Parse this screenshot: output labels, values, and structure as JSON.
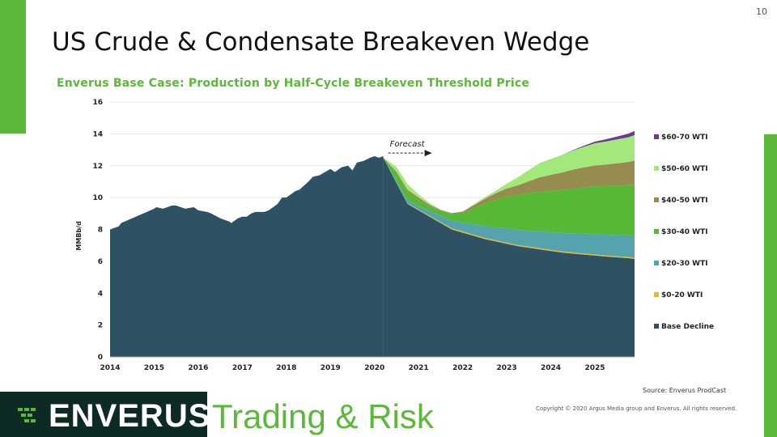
{
  "page": {
    "number": "10",
    "title": "US Crude & Condensate Breakeven Wedge",
    "source": "Source:  Enverus ProdCast",
    "copyright": "Copyright  © 2020 Argus Media group and Enverus.  All rights reserved.",
    "brand": "ENVERUS",
    "tagline": "Trading & Risk"
  },
  "colors": {
    "brand_green": "#5cb83a",
    "logo_bg": "#0e2a25",
    "base_decline": "#2e5263",
    "tier_0_20": "#e8b830",
    "tier_20_30": "#55a3ac",
    "tier_30_40": "#55b935",
    "tier_40_50": "#978c4f",
    "tier_50_60": "#a3e87a",
    "tier_60_70": "#6d3a93"
  },
  "chart_data": {
    "type": "area",
    "title": "Enverus Base Case: Production  by Half-Cycle Breakeven Threshold Price",
    "ylabel": "MMBb/d",
    "xlabel": "",
    "ylim": [
      0,
      16
    ],
    "yticks": [
      0,
      2,
      4,
      6,
      8,
      10,
      12,
      14,
      16
    ],
    "xlim": [
      2014,
      2025.9
    ],
    "xticks": [
      2014,
      2015,
      2016,
      2017,
      2018,
      2019,
      2020,
      2021,
      2022,
      2023,
      2024,
      2025
    ],
    "grid": "horizontal",
    "legend_position": "right",
    "annotation": {
      "text": "Forecast",
      "x": 2020.2,
      "y": 13.2
    },
    "historical": {
      "name": "Base Decline",
      "x": [
        2014.0,
        2014.2,
        2014.25,
        2014.5,
        2014.75,
        2015.0,
        2015.05,
        2015.2,
        2015.3,
        2015.4,
        2015.5,
        2015.7,
        2015.9,
        2016.0,
        2016.2,
        2016.3,
        2016.5,
        2016.6,
        2016.7,
        2016.75,
        2016.9,
        2017.0,
        2017.1,
        2017.2,
        2017.3,
        2017.5,
        2017.6,
        2017.7,
        2017.8,
        2017.9,
        2018.0,
        2018.2,
        2018.3,
        2018.5,
        2018.6,
        2018.75,
        2019.0,
        2019.1,
        2019.2,
        2019.25,
        2019.4,
        2019.5,
        2019.6,
        2019.75,
        2019.9,
        2020.0,
        2020.1,
        2020.2
      ],
      "y": [
        8.0,
        8.2,
        8.4,
        8.7,
        9.0,
        9.3,
        9.4,
        9.3,
        9.4,
        9.5,
        9.5,
        9.3,
        9.4,
        9.2,
        9.1,
        9.0,
        8.7,
        8.6,
        8.5,
        8.4,
        8.7,
        8.8,
        8.8,
        9.0,
        9.1,
        9.1,
        9.2,
        9.4,
        9.6,
        10.0,
        10.0,
        10.4,
        10.5,
        11.0,
        11.3,
        11.4,
        11.8,
        11.6,
        11.8,
        11.9,
        12.0,
        11.7,
        12.2,
        12.3,
        12.5,
        12.6,
        12.5,
        12.6
      ]
    },
    "forecast": {
      "x": [
        2020.2,
        2020.5,
        2020.75,
        2021.0,
        2021.25,
        2021.5,
        2021.75,
        2022.0,
        2022.25,
        2022.5,
        2022.75,
        2023.0,
        2023.25,
        2023.5,
        2023.75,
        2024.0,
        2024.25,
        2024.5,
        2024.75,
        2025.0,
        2025.25,
        2025.5,
        2025.75,
        2025.9
      ],
      "series": [
        {
          "name": "Base Decline",
          "values": [
            12.5,
            10.9,
            9.6,
            9.2,
            8.8,
            8.4,
            8.0,
            7.8,
            7.6,
            7.4,
            7.25,
            7.1,
            6.95,
            6.85,
            6.75,
            6.65,
            6.55,
            6.48,
            6.42,
            6.36,
            6.3,
            6.25,
            6.2,
            6.15
          ]
        },
        {
          "name": "$0-20 WTI",
          "values": [
            0.0,
            0.02,
            0.04,
            0.05,
            0.05,
            0.06,
            0.07,
            0.07,
            0.07,
            0.07,
            0.07,
            0.07,
            0.07,
            0.07,
            0.07,
            0.07,
            0.07,
            0.07,
            0.07,
            0.07,
            0.07,
            0.07,
            0.07,
            0.07
          ]
        },
        {
          "name": "$20-30 WTI",
          "values": [
            0.0,
            0.1,
            0.2,
            0.2,
            0.3,
            0.4,
            0.5,
            0.55,
            0.65,
            0.75,
            0.8,
            0.9,
            0.95,
            1.0,
            1.05,
            1.1,
            1.15,
            1.2,
            1.25,
            1.28,
            1.3,
            1.33,
            1.36,
            1.4
          ]
        },
        {
          "name": "$30-40 WTI",
          "values": [
            0.0,
            0.5,
            0.5,
            0.4,
            0.3,
            0.3,
            0.4,
            0.6,
            1.0,
            1.4,
            1.75,
            2.0,
            2.2,
            2.35,
            2.5,
            2.6,
            2.7,
            2.8,
            2.9,
            3.0,
            3.05,
            3.1,
            3.15,
            3.2
          ]
        },
        {
          "name": "$40-50 WTI",
          "values": [
            0.0,
            0.1,
            0.15,
            0.15,
            0.1,
            0.05,
            0.05,
            0.1,
            0.2,
            0.3,
            0.4,
            0.5,
            0.6,
            0.75,
            0.9,
            1.0,
            1.1,
            1.2,
            1.25,
            1.3,
            1.35,
            1.4,
            1.45,
            1.5
          ]
        },
        {
          "name": "$50-60 WTI",
          "values": [
            0.0,
            0.3,
            0.35,
            0.2,
            0.1,
            0.05,
            0.0,
            0.0,
            0.05,
            0.1,
            0.15,
            0.3,
            0.5,
            0.7,
            0.9,
            1.0,
            1.1,
            1.2,
            1.3,
            1.4,
            1.45,
            1.5,
            1.55,
            1.6
          ]
        },
        {
          "name": "$60-70 WTI",
          "values": [
            0.0,
            0.0,
            0.0,
            0.0,
            0.0,
            0.0,
            0.0,
            0.0,
            0.0,
            0.0,
            0.0,
            0.0,
            0.0,
            0.0,
            0.0,
            0.0,
            0.0,
            0.03,
            0.06,
            0.1,
            0.14,
            0.18,
            0.22,
            0.26
          ]
        }
      ]
    },
    "legend": [
      {
        "name": "$60-70 WTI",
        "color": "#6d3a93"
      },
      {
        "name": "$50-60 WTI",
        "color": "#a3e87a"
      },
      {
        "name": "$40-50 WTI",
        "color": "#978c4f"
      },
      {
        "name": "$30-40 WTI",
        "color": "#55b935"
      },
      {
        "name": "$20-30 WTI",
        "color": "#55a3ac"
      },
      {
        "name": "$0-20 WTI",
        "color": "#e8b830"
      },
      {
        "name": "Base Decline",
        "color": "#2e5263"
      }
    ]
  }
}
